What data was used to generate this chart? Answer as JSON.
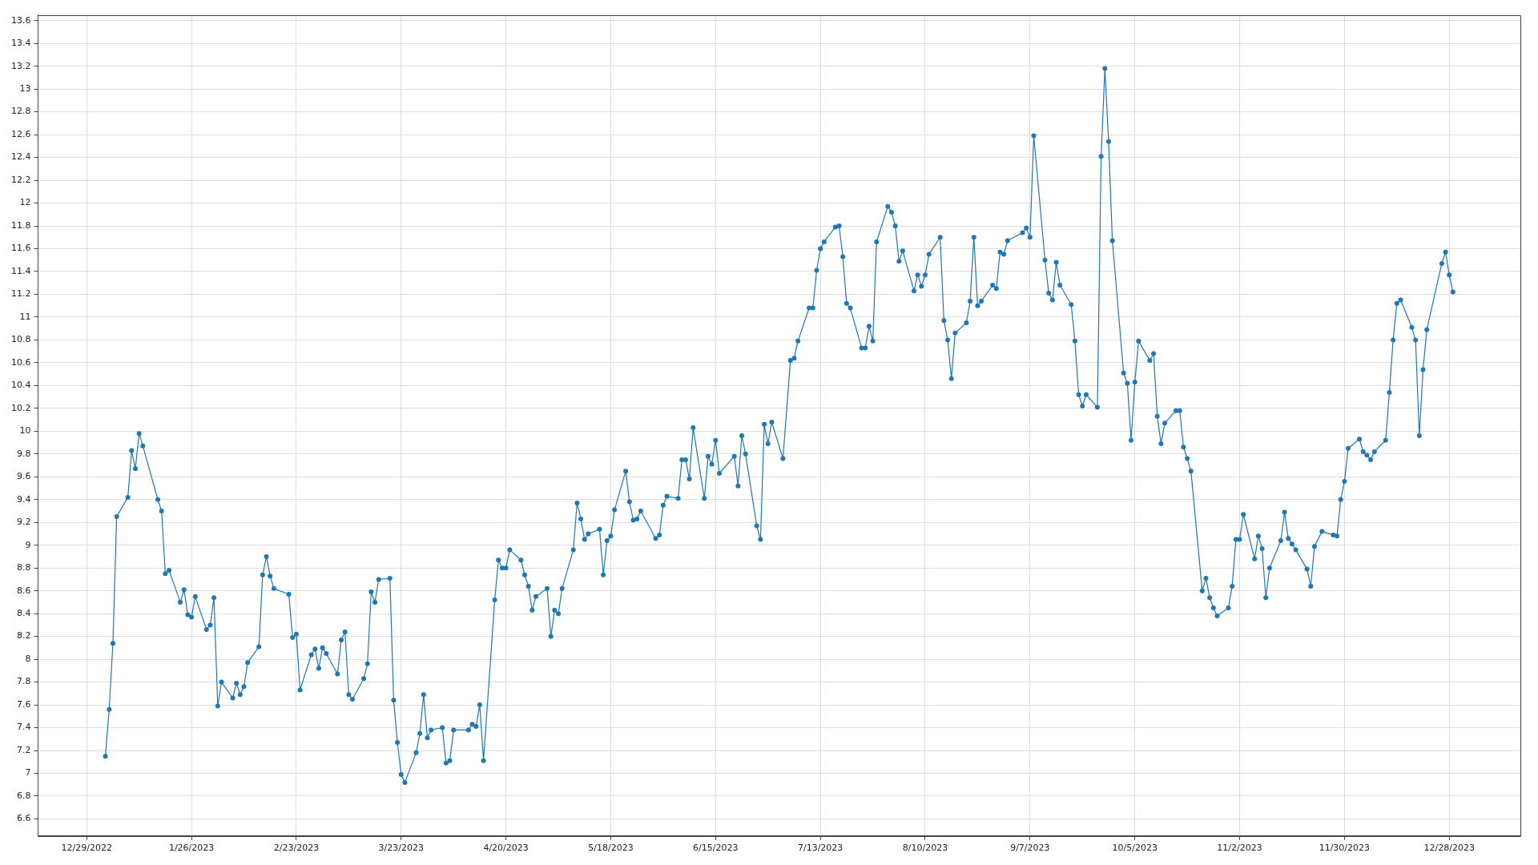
{
  "chart_data": {
    "type": "line",
    "x": [
      "2023-01-03",
      "2023-01-04",
      "2023-01-05",
      "2023-01-06",
      "2023-01-09",
      "2023-01-10",
      "2023-01-11",
      "2023-01-12",
      "2023-01-13",
      "2023-01-17",
      "2023-01-18",
      "2023-01-19",
      "2023-01-20",
      "2023-01-23",
      "2023-01-24",
      "2023-01-25",
      "2023-01-26",
      "2023-01-27",
      "2023-01-30",
      "2023-01-31",
      "2023-02-01",
      "2023-02-02",
      "2023-02-03",
      "2023-02-06",
      "2023-02-07",
      "2023-02-08",
      "2023-02-09",
      "2023-02-10",
      "2023-02-13",
      "2023-02-14",
      "2023-02-15",
      "2023-02-16",
      "2023-02-17",
      "2023-02-21",
      "2023-02-22",
      "2023-02-23",
      "2023-02-24",
      "2023-02-27",
      "2023-02-28",
      "2023-03-01",
      "2023-03-02",
      "2023-03-03",
      "2023-03-06",
      "2023-03-07",
      "2023-03-08",
      "2023-03-09",
      "2023-03-10",
      "2023-03-13",
      "2023-03-14",
      "2023-03-15",
      "2023-03-16",
      "2023-03-17",
      "2023-03-20",
      "2023-03-21",
      "2023-03-22",
      "2023-03-23",
      "2023-03-24",
      "2023-03-27",
      "2023-03-28",
      "2023-03-29",
      "2023-03-30",
      "2023-03-31",
      "2023-04-03",
      "2023-04-04",
      "2023-04-05",
      "2023-04-06",
      "2023-04-10",
      "2023-04-11",
      "2023-04-12",
      "2023-04-13",
      "2023-04-14",
      "2023-04-17",
      "2023-04-18",
      "2023-04-19",
      "2023-04-20",
      "2023-04-21",
      "2023-04-24",
      "2023-04-25",
      "2023-04-26",
      "2023-04-27",
      "2023-04-28",
      "2023-05-01",
      "2023-05-02",
      "2023-05-03",
      "2023-05-04",
      "2023-05-05",
      "2023-05-08",
      "2023-05-09",
      "2023-05-10",
      "2023-05-11",
      "2023-05-12",
      "2023-05-15",
      "2023-05-16",
      "2023-05-17",
      "2023-05-18",
      "2023-05-19",
      "2023-05-22",
      "2023-05-23",
      "2023-05-24",
      "2023-05-25",
      "2023-05-26",
      "2023-05-30",
      "2023-05-31",
      "2023-06-01",
      "2023-06-02",
      "2023-06-05",
      "2023-06-06",
      "2023-06-07",
      "2023-06-08",
      "2023-06-09",
      "2023-06-12",
      "2023-06-13",
      "2023-06-14",
      "2023-06-15",
      "2023-06-16",
      "2023-06-20",
      "2023-06-21",
      "2023-06-22",
      "2023-06-23",
      "2023-06-26",
      "2023-06-27",
      "2023-06-28",
      "2023-06-29",
      "2023-06-30",
      "2023-07-03",
      "2023-07-05",
      "2023-07-06",
      "2023-07-07",
      "2023-07-10",
      "2023-07-11",
      "2023-07-12",
      "2023-07-13",
      "2023-07-14",
      "2023-07-17",
      "2023-07-18",
      "2023-07-19",
      "2023-07-20",
      "2023-07-21",
      "2023-07-24",
      "2023-07-25",
      "2023-07-26",
      "2023-07-27",
      "2023-07-28",
      "2023-07-31",
      "2023-08-01",
      "2023-08-02",
      "2023-08-03",
      "2023-08-04",
      "2023-08-07",
      "2023-08-08",
      "2023-08-09",
      "2023-08-10",
      "2023-08-11",
      "2023-08-14",
      "2023-08-15",
      "2023-08-16",
      "2023-08-17",
      "2023-08-18",
      "2023-08-21",
      "2023-08-22",
      "2023-08-23",
      "2023-08-24",
      "2023-08-25",
      "2023-08-28",
      "2023-08-29",
      "2023-08-30",
      "2023-08-31",
      "2023-09-01",
      "2023-09-05",
      "2023-09-06",
      "2023-09-07",
      "2023-09-08",
      "2023-09-11",
      "2023-09-12",
      "2023-09-13",
      "2023-09-14",
      "2023-09-15",
      "2023-09-18",
      "2023-09-19",
      "2023-09-20",
      "2023-09-21",
      "2023-09-22",
      "2023-09-25",
      "2023-09-26",
      "2023-09-27",
      "2023-09-28",
      "2023-09-29",
      "2023-10-02",
      "2023-10-03",
      "2023-10-04",
      "2023-10-05",
      "2023-10-06",
      "2023-10-09",
      "2023-10-10",
      "2023-10-11",
      "2023-10-12",
      "2023-10-13",
      "2023-10-16",
      "2023-10-17",
      "2023-10-18",
      "2023-10-19",
      "2023-10-20",
      "2023-10-23",
      "2023-10-24",
      "2023-10-25",
      "2023-10-26",
      "2023-10-27",
      "2023-10-30",
      "2023-10-31",
      "2023-11-01",
      "2023-11-02",
      "2023-11-03",
      "2023-11-06",
      "2023-11-07",
      "2023-11-08",
      "2023-11-09",
      "2023-11-10",
      "2023-11-13",
      "2023-11-14",
      "2023-11-15",
      "2023-11-16",
      "2023-11-17",
      "2023-11-20",
      "2023-11-21",
      "2023-11-22",
      "2023-11-24",
      "2023-11-27",
      "2023-11-28",
      "2023-11-29",
      "2023-11-30",
      "2023-12-01",
      "2023-12-04",
      "2023-12-05",
      "2023-12-06",
      "2023-12-07",
      "2023-12-08",
      "2023-12-11",
      "2023-12-12",
      "2023-12-13",
      "2023-12-14",
      "2023-12-15",
      "2023-12-18",
      "2023-12-19",
      "2023-12-20",
      "2023-12-21",
      "2023-12-22",
      "2023-12-26",
      "2023-12-27",
      "2023-12-28",
      "2023-12-29"
    ],
    "series": [
      {
        "color": "#1f77b4",
        "values": [
          7.15,
          7.56,
          8.14,
          9.25,
          9.42,
          9.83,
          9.67,
          9.98,
          9.87,
          9.4,
          9.3,
          8.75,
          8.78,
          8.5,
          8.61,
          8.39,
          8.37,
          8.55,
          8.26,
          8.3,
          8.54,
          7.59,
          7.8,
          7.66,
          7.79,
          7.69,
          7.76,
          7.97,
          8.11,
          8.74,
          8.9,
          8.73,
          8.62,
          8.57,
          8.19,
          8.22,
          7.73,
          8.04,
          8.09,
          7.92,
          8.1,
          8.05,
          7.87,
          8.17,
          8.24,
          7.69,
          7.65,
          7.83,
          7.96,
          8.59,
          8.5,
          8.7,
          8.71,
          7.64,
          7.27,
          6.99,
          6.92,
          7.18,
          7.35,
          7.69,
          7.31,
          7.38,
          7.4,
          7.09,
          7.11,
          7.38,
          7.38,
          7.43,
          7.41,
          7.6,
          7.11,
          8.52,
          8.87,
          8.8,
          8.8,
          8.96,
          8.87,
          8.74,
          8.64,
          8.43,
          8.55,
          8.62,
          8.2,
          8.43,
          8.4,
          8.62,
          8.96,
          9.37,
          9.23,
          9.05,
          9.1,
          9.14,
          8.74,
          9.04,
          9.08,
          9.31,
          9.65,
          9.38,
          9.22,
          9.23,
          9.3,
          9.06,
          9.09,
          9.35,
          9.43,
          9.41,
          9.75,
          9.75,
          9.58,
          10.03,
          9.41,
          9.78,
          9.71,
          9.92,
          9.63,
          9.78,
          9.52,
          9.96,
          9.8,
          9.17,
          9.05,
          10.06,
          9.89,
          10.08,
          9.76,
          10.62,
          10.64,
          10.79,
          11.08,
          11.08,
          11.41,
          11.6,
          11.66,
          11.79,
          11.8,
          11.53,
          11.12,
          11.08,
          10.73,
          10.73,
          10.92,
          10.79,
          11.66,
          11.97,
          11.92,
          11.8,
          11.49,
          11.58,
          11.23,
          11.37,
          11.27,
          11.37,
          11.55,
          11.7,
          10.97,
          10.8,
          10.46,
          10.86,
          10.95,
          11.14,
          11.7,
          11.1,
          11.14,
          11.28,
          11.25,
          11.57,
          11.55,
          11.67,
          11.74,
          11.78,
          11.7,
          12.59,
          11.5,
          11.21,
          11.15,
          11.48,
          11.28,
          11.11,
          10.79,
          10.32,
          10.22,
          10.32,
          10.21,
          12.41,
          13.18,
          12.54,
          11.67,
          10.51,
          10.42,
          9.92,
          10.43,
          10.79,
          10.62,
          10.68,
          10.13,
          9.89,
          10.07,
          10.18,
          10.18,
          9.86,
          9.76,
          9.65,
          8.6,
          8.71,
          8.54,
          8.45,
          8.38,
          8.45,
          8.64,
          9.05,
          9.05,
          9.27,
          8.88,
          9.08,
          8.97,
          8.54,
          8.8,
          9.04,
          9.29,
          9.06,
          9.01,
          8.96,
          8.79,
          8.64,
          8.99,
          9.12,
          9.09,
          9.08,
          9.4,
          9.56,
          9.85,
          9.93,
          9.82,
          9.79,
          9.75,
          9.82,
          9.92,
          10.34,
          10.8,
          11.12,
          11.15,
          10.91,
          10.8,
          9.96,
          10.54,
          10.89,
          11.47,
          11.57,
          11.37,
          11.22
        ]
      }
    ],
    "xlim": [
      "2022-12-16",
      "2024-01-16"
    ],
    "xticks": [
      {
        "value": "2022-12-29",
        "label": "12/29/2022"
      },
      {
        "value": "2023-01-26",
        "label": "1/26/2023"
      },
      {
        "value": "2023-02-23",
        "label": "2/23/2023"
      },
      {
        "value": "2023-03-23",
        "label": "3/23/2023"
      },
      {
        "value": "2023-04-20",
        "label": "4/20/2023"
      },
      {
        "value": "2023-05-18",
        "label": "5/18/2023"
      },
      {
        "value": "2023-06-15",
        "label": "6/15/2023"
      },
      {
        "value": "2023-07-13",
        "label": "7/13/2023"
      },
      {
        "value": "2023-08-10",
        "label": "8/10/2023"
      },
      {
        "value": "2023-09-07",
        "label": "9/7/2023"
      },
      {
        "value": "2023-10-05",
        "label": "10/5/2023"
      },
      {
        "value": "2023-11-02",
        "label": "11/2/2023"
      },
      {
        "value": "2023-11-30",
        "label": "11/30/2023"
      },
      {
        "value": "2023-12-28",
        "label": "12/28/2023"
      }
    ],
    "ylim": [
      6.45,
      13.65
    ],
    "yticks": [
      6.6,
      6.8,
      7,
      7.2,
      7.4,
      7.6,
      7.8,
      8,
      8.2,
      8.4,
      8.6,
      8.8,
      9,
      9.2,
      9.4,
      9.6,
      9.8,
      10,
      10.2,
      10.4,
      10.6,
      10.8,
      11,
      11.2,
      11.4,
      11.6,
      11.8,
      12,
      12.2,
      12.4,
      12.6,
      12.8,
      13,
      13.2,
      13.4,
      13.6
    ],
    "grid": true,
    "marker": "circle",
    "line_style": "solid"
  }
}
